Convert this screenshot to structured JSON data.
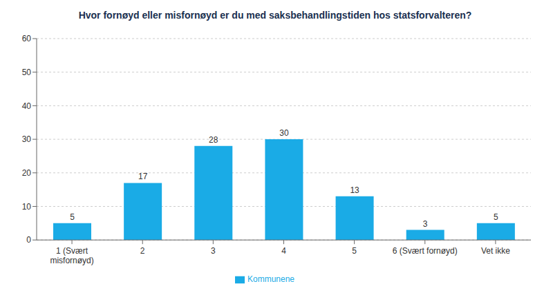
{
  "chart_data": {
    "type": "bar",
    "title": "Hvor fornøyd eller misfornøyd er du med saksbehandlingstiden hos statsforvalteren?",
    "categories": [
      "1 (Svært\nmisfornøyd)",
      "2",
      "3",
      "4",
      "5",
      "6 (Svært fornøyd)",
      "Vet ikke"
    ],
    "series": [
      {
        "name": "Kommunene",
        "color": "#1aabe6",
        "values": [
          5,
          17,
          28,
          30,
          13,
          3,
          5
        ]
      }
    ],
    "ylim": [
      0,
      60
    ],
    "yticks": [
      0,
      10,
      20,
      30,
      40,
      50,
      60
    ],
    "grid": true,
    "legend": "bottom",
    "data_labels": true
  }
}
